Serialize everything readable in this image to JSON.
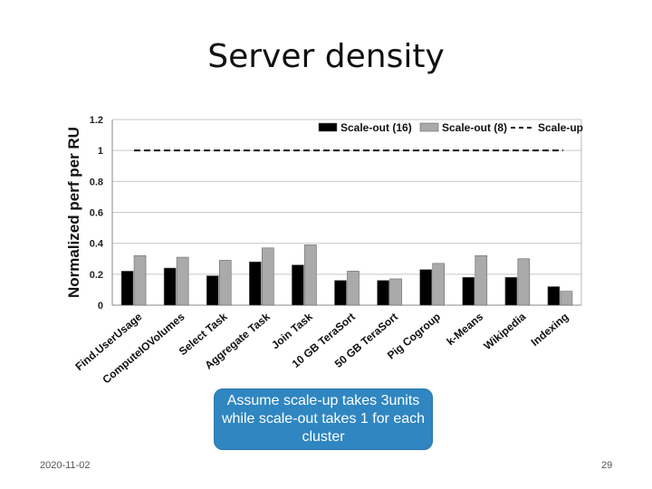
{
  "title": "Server density",
  "callout": "Assume scale-up takes 3units while scale-out takes 1 for each cluster",
  "footer": {
    "date": "2020-11-02",
    "page": "29"
  },
  "chart_data": {
    "type": "bar",
    "ylabel": "Normalized perf per RU",
    "ylim": [
      0,
      1.2
    ],
    "yticks": [
      "0",
      "0.2",
      "0.4",
      "0.6",
      "0.8",
      "1",
      "1.2"
    ],
    "grid": true,
    "legend_position": "top-right",
    "categories": [
      "Find.UserUsage",
      "ComputeIOVolumes",
      "Select Task",
      "Aggregate Task",
      "Join Task",
      "10 GB TeraSort",
      "50 GB TeraSort",
      "Pig Cogroup",
      "k-Means",
      "Wikipedia",
      "Indexing"
    ],
    "series": [
      {
        "name": "Scale-out (16)",
        "color": "#000000",
        "values": [
          0.22,
          0.24,
          0.19,
          0.28,
          0.26,
          0.16,
          0.16,
          0.23,
          0.18,
          0.18,
          0.12
        ]
      },
      {
        "name": "Scale-out (8)",
        "color": "#aaaaaa",
        "values": [
          0.32,
          0.31,
          0.29,
          0.37,
          0.39,
          0.22,
          0.17,
          0.27,
          0.32,
          0.3,
          0.09
        ]
      }
    ],
    "reference_line": {
      "name": "Scale-up",
      "value": 1
    }
  }
}
